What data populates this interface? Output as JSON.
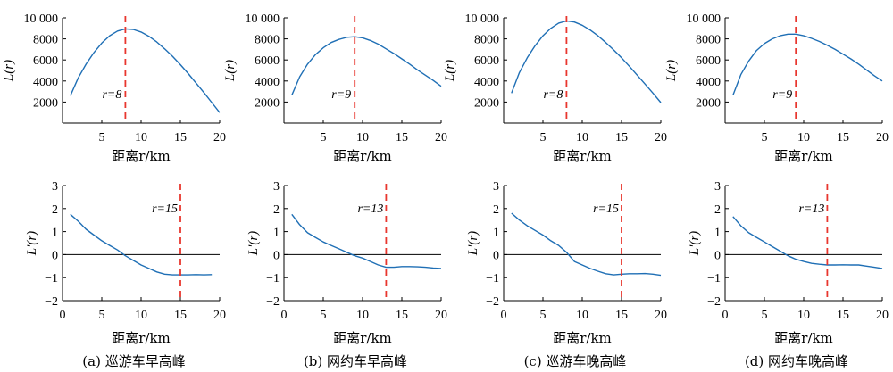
{
  "chart_data": [
    {
      "panel": "a",
      "row": "top",
      "type": "line",
      "xlabel": "距离r/km",
      "ylabel": "L(r)",
      "xlim": [
        0,
        20
      ],
      "ylim": [
        0,
        10000
      ],
      "xticks": [
        "5",
        "10",
        "15",
        "20"
      ],
      "yticks": [
        "2000",
        "4000",
        "6000",
        "8000",
        "10 000"
      ],
      "zero_line": false,
      "series": [
        {
          "x": [
            1,
            2,
            3,
            4,
            5,
            6,
            7,
            8,
            9,
            10,
            11,
            12,
            13,
            14,
            15,
            16,
            17,
            18,
            19,
            20
          ],
          "values": [
            2600,
            4300,
            5600,
            6700,
            7600,
            8300,
            8750,
            8950,
            8900,
            8650,
            8250,
            7700,
            7050,
            6350,
            5550,
            4700,
            3800,
            2900,
            1950,
            1000
          ],
          "color": "#1f6fb5"
        }
      ],
      "vline": {
        "x": 8,
        "color": "#e8362e"
      },
      "annotation": "r=8"
    },
    {
      "panel": "b",
      "row": "top",
      "type": "line",
      "xlabel": "距离r/km",
      "ylabel": "L(r)",
      "xlim": [
        0,
        20
      ],
      "ylim": [
        0,
        10000
      ],
      "xticks": [
        "5",
        "10",
        "15",
        "20"
      ],
      "yticks": [
        "2000",
        "4000",
        "6000",
        "8000",
        "10 000"
      ],
      "zero_line": false,
      "series": [
        {
          "x": [
            1,
            2,
            3,
            4,
            5,
            6,
            7,
            8,
            9,
            10,
            11,
            12,
            13,
            14,
            15,
            16,
            17,
            18,
            19,
            20
          ],
          "values": [
            2650,
            4400,
            5600,
            6500,
            7150,
            7650,
            7950,
            8150,
            8200,
            8100,
            7850,
            7500,
            7050,
            6600,
            6100,
            5600,
            5050,
            4550,
            4050,
            3500
          ],
          "color": "#1f6fb5"
        }
      ],
      "vline": {
        "x": 9,
        "color": "#e8362e"
      },
      "annotation": "r=9"
    },
    {
      "panel": "c",
      "row": "top",
      "type": "line",
      "xlabel": "距离r/km",
      "ylabel": "L(r)",
      "xlim": [
        0,
        20
      ],
      "ylim": [
        0,
        10000
      ],
      "xticks": [
        "5",
        "10",
        "15",
        "20"
      ],
      "yticks": [
        "2000",
        "4000",
        "6000",
        "8000",
        "10 000"
      ],
      "zero_line": false,
      "series": [
        {
          "x": [
            1,
            2,
            3,
            4,
            5,
            6,
            7,
            8,
            9,
            10,
            11,
            12,
            13,
            14,
            15,
            16,
            17,
            18,
            19,
            20
          ],
          "values": [
            2850,
            4800,
            6200,
            7350,
            8300,
            9000,
            9500,
            9700,
            9600,
            9300,
            8850,
            8300,
            7650,
            6950,
            6200,
            5400,
            4550,
            3700,
            2850,
            1950
          ],
          "color": "#1f6fb5"
        }
      ],
      "vline": {
        "x": 8,
        "color": "#e8362e"
      },
      "annotation": "r=8"
    },
    {
      "panel": "d",
      "row": "top",
      "type": "line",
      "xlabel": "距离r/km",
      "ylabel": "L(r)",
      "xlim": [
        0,
        20
      ],
      "ylim": [
        0,
        10000
      ],
      "xticks": [
        "5",
        "10",
        "15",
        "20"
      ],
      "yticks": [
        "2000",
        "4000",
        "6000",
        "8000",
        "10 000"
      ],
      "zero_line": false,
      "series": [
        {
          "x": [
            1,
            2,
            3,
            4,
            5,
            6,
            7,
            8,
            9,
            10,
            11,
            12,
            13,
            14,
            15,
            16,
            17,
            18,
            19,
            20
          ],
          "values": [
            2650,
            4600,
            5900,
            6900,
            7550,
            8000,
            8300,
            8450,
            8450,
            8300,
            8050,
            7750,
            7400,
            7000,
            6550,
            6100,
            5600,
            5050,
            4500,
            4000
          ],
          "color": "#1f6fb5"
        }
      ],
      "vline": {
        "x": 9,
        "color": "#e8362e"
      },
      "annotation": "r=9"
    },
    {
      "panel": "a",
      "row": "bottom",
      "type": "line",
      "xlabel": "距离r/km",
      "ylabel": "L'(r)",
      "xlim": [
        0,
        20
      ],
      "ylim": [
        -2,
        3
      ],
      "xticks": [
        "0",
        "5",
        "10",
        "15",
        "20"
      ],
      "yticks": [
        "−2",
        "−1",
        "0",
        "1",
        "2",
        "3"
      ],
      "zero_line": true,
      "series": [
        {
          "x": [
            1,
            2,
            3,
            4,
            5,
            6,
            7,
            8,
            9,
            10,
            11,
            12,
            13,
            14,
            15,
            16,
            17,
            18,
            19
          ],
          "values": [
            1.75,
            1.45,
            1.1,
            0.85,
            0.6,
            0.4,
            0.2,
            -0.05,
            -0.25,
            -0.45,
            -0.6,
            -0.75,
            -0.85,
            -0.88,
            -0.88,
            -0.88,
            -0.87,
            -0.88,
            -0.87
          ],
          "color": "#1f6fb5"
        }
      ],
      "vline": {
        "x": 15,
        "color": "#e8362e"
      },
      "annotation": "r=15"
    },
    {
      "panel": "b",
      "row": "bottom",
      "type": "line",
      "xlabel": "距离r/km",
      "ylabel": "L'(r)",
      "xlim": [
        0,
        20
      ],
      "ylim": [
        -2,
        3
      ],
      "xticks": [
        "0",
        "5",
        "10",
        "15",
        "20"
      ],
      "yticks": [
        "−2",
        "−1",
        "0",
        "1",
        "2",
        "3"
      ],
      "zero_line": true,
      "series": [
        {
          "x": [
            1,
            2,
            3,
            4,
            5,
            6,
            7,
            8,
            9,
            10,
            11,
            12,
            13,
            14,
            15,
            16,
            17,
            18,
            19,
            20
          ],
          "values": [
            1.75,
            1.3,
            0.95,
            0.75,
            0.55,
            0.4,
            0.25,
            0.1,
            -0.05,
            -0.15,
            -0.3,
            -0.45,
            -0.55,
            -0.55,
            -0.52,
            -0.52,
            -0.53,
            -0.55,
            -0.58,
            -0.6
          ],
          "color": "#1f6fb5"
        }
      ],
      "vline": {
        "x": 13,
        "color": "#e8362e"
      },
      "annotation": "r=13"
    },
    {
      "panel": "c",
      "row": "bottom",
      "type": "line",
      "xlabel": "距离r/km",
      "ylabel": "L'(r)",
      "xlim": [
        0,
        20
      ],
      "ylim": [
        -2,
        3
      ],
      "xticks": [
        "0",
        "5",
        "10",
        "15",
        "20"
      ],
      "yticks": [
        "−2",
        "−1",
        "0",
        "1",
        "2",
        "3"
      ],
      "zero_line": true,
      "series": [
        {
          "x": [
            1,
            2,
            3,
            4,
            5,
            6,
            7,
            8,
            9,
            10,
            11,
            12,
            13,
            14,
            15,
            16,
            17,
            18,
            19,
            20
          ],
          "values": [
            1.8,
            1.5,
            1.25,
            1.05,
            0.85,
            0.6,
            0.4,
            0.1,
            -0.3,
            -0.45,
            -0.6,
            -0.72,
            -0.83,
            -0.88,
            -0.85,
            -0.83,
            -0.83,
            -0.82,
            -0.85,
            -0.9
          ],
          "color": "#1f6fb5"
        }
      ],
      "vline": {
        "x": 15,
        "color": "#e8362e"
      },
      "annotation": "r=15"
    },
    {
      "panel": "d",
      "row": "bottom",
      "type": "line",
      "xlabel": "距离r/km",
      "ylabel": "L'(r)",
      "xlim": [
        0,
        20
      ],
      "ylim": [
        -2,
        3
      ],
      "xticks": [
        "0",
        "5",
        "10",
        "15",
        "20"
      ],
      "yticks": [
        "−2",
        "−1",
        "0",
        "1",
        "2",
        "3"
      ],
      "zero_line": true,
      "series": [
        {
          "x": [
            1,
            2,
            3,
            4,
            5,
            6,
            7,
            8,
            9,
            10,
            11,
            12,
            13,
            14,
            15,
            16,
            17,
            18,
            19,
            20
          ],
          "values": [
            1.65,
            1.25,
            0.95,
            0.75,
            0.55,
            0.35,
            0.15,
            -0.05,
            -0.2,
            -0.3,
            -0.38,
            -0.42,
            -0.45,
            -0.45,
            -0.44,
            -0.45,
            -0.45,
            -0.5,
            -0.55,
            -0.6
          ],
          "color": "#1f6fb5"
        }
      ],
      "vline": {
        "x": 13,
        "color": "#e8362e"
      },
      "annotation": "r=13"
    }
  ],
  "captions": [
    "(a) 巡游车早高峰",
    "(b) 网约车早高峰",
    "(c) 巡游车晚高峰",
    "(d) 网约车晚高峰"
  ]
}
